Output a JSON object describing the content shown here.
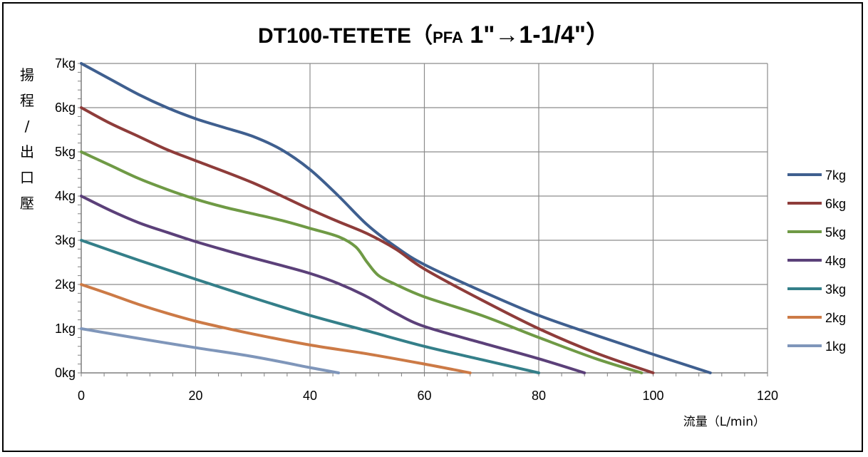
{
  "chart_data": {
    "type": "line",
    "title_parts": [
      "DT100-TETETE（",
      "PFA",
      " 1\"→1-1/4\"）"
    ],
    "xlabel": "流量（L/min）",
    "ylabel_chars": [
      "揚",
      "程",
      "/",
      "出",
      "口",
      "壓"
    ],
    "xlim": [
      0,
      120
    ],
    "ylim": [
      0,
      7
    ],
    "x_ticks": [
      "0",
      "20",
      "40",
      "60",
      "80",
      "100",
      "120"
    ],
    "y_ticks": [
      "0kg",
      "1kg",
      "2kg",
      "3kg",
      "4kg",
      "5kg",
      "6kg",
      "7kg"
    ],
    "grid": true,
    "legend_position": "right",
    "series": [
      {
        "name": "7kg",
        "color": "#3f5f8f",
        "points": [
          [
            0,
            7
          ],
          [
            5,
            6.65
          ],
          [
            10,
            6.3
          ],
          [
            15,
            6.0
          ],
          [
            20,
            5.75
          ],
          [
            25,
            5.55
          ],
          [
            30,
            5.35
          ],
          [
            35,
            5.05
          ],
          [
            40,
            4.6
          ],
          [
            45,
            4.0
          ],
          [
            50,
            3.35
          ],
          [
            55,
            2.85
          ],
          [
            60,
            2.45
          ],
          [
            70,
            1.85
          ],
          [
            80,
            1.3
          ],
          [
            90,
            0.85
          ],
          [
            100,
            0.42
          ],
          [
            110,
            0
          ]
        ]
      },
      {
        "name": "6kg",
        "color": "#8e3c3a",
        "points": [
          [
            0,
            6
          ],
          [
            5,
            5.65
          ],
          [
            10,
            5.35
          ],
          [
            15,
            5.05
          ],
          [
            20,
            4.8
          ],
          [
            30,
            4.3
          ],
          [
            40,
            3.7
          ],
          [
            45,
            3.42
          ],
          [
            50,
            3.15
          ],
          [
            55,
            2.8
          ],
          [
            60,
            2.35
          ],
          [
            70,
            1.65
          ],
          [
            80,
            1.0
          ],
          [
            90,
            0.45
          ],
          [
            100,
            0
          ]
        ]
      },
      {
        "name": "5kg",
        "color": "#6f9a45",
        "points": [
          [
            0,
            5
          ],
          [
            5,
            4.7
          ],
          [
            10,
            4.4
          ],
          [
            15,
            4.15
          ],
          [
            20,
            3.93
          ],
          [
            25,
            3.75
          ],
          [
            30,
            3.6
          ],
          [
            35,
            3.45
          ],
          [
            40,
            3.27
          ],
          [
            45,
            3.08
          ],
          [
            48,
            2.85
          ],
          [
            50,
            2.5
          ],
          [
            52,
            2.2
          ],
          [
            55,
            2.0
          ],
          [
            60,
            1.72
          ],
          [
            70,
            1.3
          ],
          [
            80,
            0.8
          ],
          [
            90,
            0.32
          ],
          [
            98,
            0
          ]
        ]
      },
      {
        "name": "4kg",
        "color": "#5b4079",
        "points": [
          [
            0,
            4
          ],
          [
            5,
            3.68
          ],
          [
            10,
            3.4
          ],
          [
            15,
            3.18
          ],
          [
            20,
            2.97
          ],
          [
            25,
            2.78
          ],
          [
            30,
            2.6
          ],
          [
            35,
            2.43
          ],
          [
            40,
            2.25
          ],
          [
            45,
            2.02
          ],
          [
            50,
            1.72
          ],
          [
            55,
            1.35
          ],
          [
            60,
            1.05
          ],
          [
            70,
            0.68
          ],
          [
            80,
            0.32
          ],
          [
            88,
            0
          ]
        ]
      },
      {
        "name": "3kg",
        "color": "#347f89",
        "points": [
          [
            0,
            3
          ],
          [
            10,
            2.55
          ],
          [
            20,
            2.12
          ],
          [
            30,
            1.7
          ],
          [
            40,
            1.3
          ],
          [
            50,
            0.95
          ],
          [
            60,
            0.6
          ],
          [
            70,
            0.3
          ],
          [
            80,
            0
          ]
        ]
      },
      {
        "name": "2kg",
        "color": "#cc7a46",
        "points": [
          [
            0,
            2
          ],
          [
            5,
            1.78
          ],
          [
            10,
            1.55
          ],
          [
            15,
            1.35
          ],
          [
            20,
            1.17
          ],
          [
            25,
            1.02
          ],
          [
            30,
            0.88
          ],
          [
            40,
            0.63
          ],
          [
            50,
            0.43
          ],
          [
            60,
            0.2
          ],
          [
            68,
            0
          ]
        ]
      },
      {
        "name": "1kg",
        "color": "#7f96ba",
        "points": [
          [
            0,
            1
          ],
          [
            10,
            0.78
          ],
          [
            20,
            0.57
          ],
          [
            30,
            0.37
          ],
          [
            40,
            0.12
          ],
          [
            45,
            0
          ]
        ]
      }
    ]
  }
}
